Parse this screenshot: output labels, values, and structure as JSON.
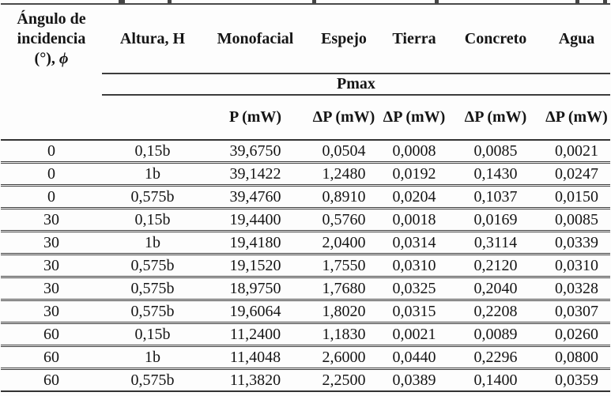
{
  "table": {
    "header": {
      "angle_col_lines": [
        "Ángulo de",
        "incidencia"
      ],
      "angle_unit_prefix": "(°),",
      "angle_symbol": "ϕ",
      "columns": [
        "Altura, H",
        "Monofacial",
        "Espejo",
        "Tierra",
        "Concreto",
        "Agua"
      ],
      "span_label": "Pmax",
      "sub_columns": [
        {
          "symbol": "P",
          "unit": "(mW)"
        },
        {
          "symbol": "ΔP",
          "unit": "(mW)"
        },
        {
          "symbol": "ΔP",
          "unit": "(mW)"
        },
        {
          "symbol": "ΔP",
          "unit": "(mW)"
        },
        {
          "symbol": "ΔP",
          "unit": "(mW)"
        }
      ]
    },
    "rows": [
      [
        "0",
        "0,15b",
        "39,6750",
        "0,0504",
        "0,0008",
        "0,0085",
        "0,0021"
      ],
      [
        "0",
        "1b",
        "39,1422",
        "1,2480",
        "0,0192",
        "0,1430",
        "0,0247"
      ],
      [
        "0",
        "0,575b",
        "39,4760",
        "0,8910",
        "0,0204",
        "0,1037",
        "0,0150"
      ],
      [
        "30",
        "0,15b",
        "19,4400",
        "0,5760",
        "0,0018",
        "0,0169",
        "0,0085"
      ],
      [
        "30",
        "1b",
        "19,4180",
        "2,0400",
        "0,0314",
        "0,3114",
        "0,0339"
      ],
      [
        "30",
        "0,575b",
        "19,1520",
        "1,7550",
        "0,0310",
        "0,2120",
        "0,0310"
      ],
      [
        "30",
        "0,575b",
        "18,9750",
        "1,7680",
        "0,0325",
        "0,2040",
        "0,0328"
      ],
      [
        "30",
        "0,575b",
        "19,6064",
        "1,8020",
        "0,0315",
        "0,2208",
        "0,0307"
      ],
      [
        "60",
        "0,15b",
        "11,2400",
        "1,1830",
        "0,0021",
        "0,0089",
        "0,0260"
      ],
      [
        "60",
        "1b",
        "11,4048",
        "2,6000",
        "0,0440",
        "0,2296",
        "0,0800"
      ],
      [
        "60",
        "0,575b",
        "11,3820",
        "2,2500",
        "0,0389",
        "0,1400",
        "0,0359"
      ]
    ]
  }
}
